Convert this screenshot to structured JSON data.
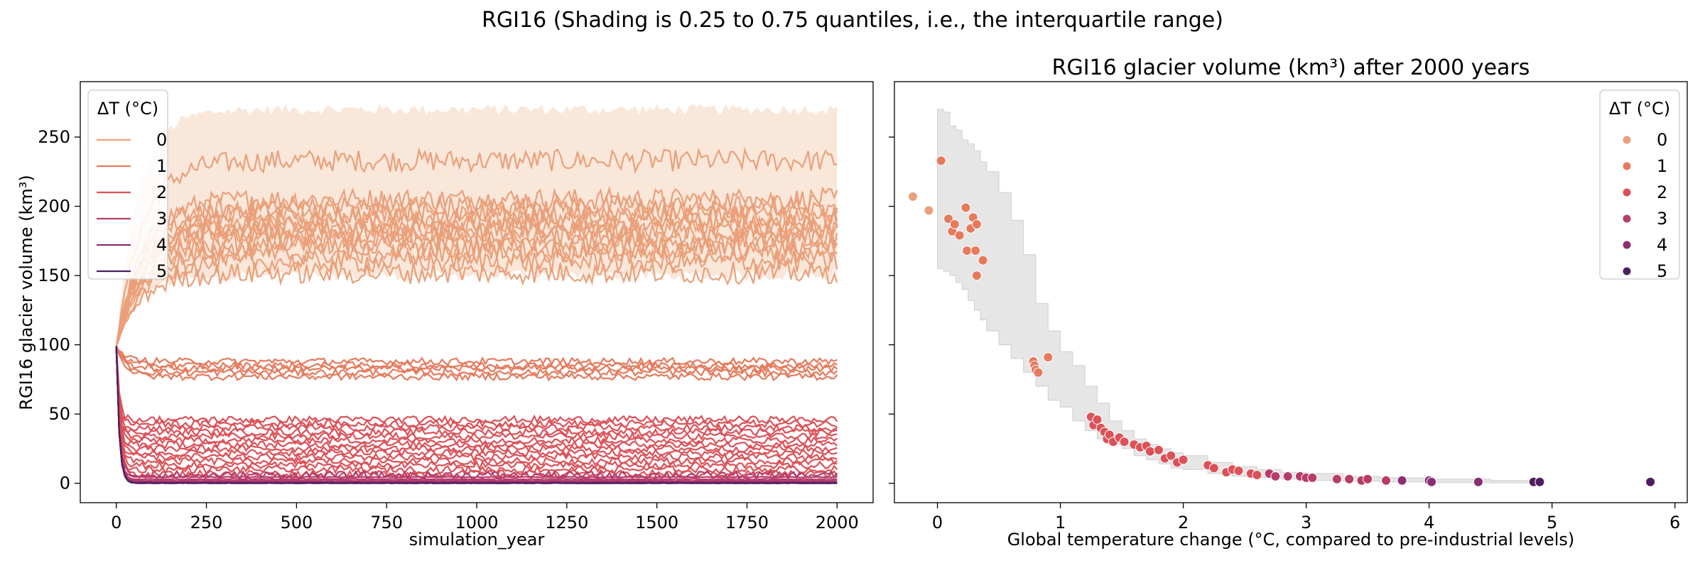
{
  "suptitle": "RGI16 (Shading is 0.25 to 0.75 quantiles, i.e., the interquartile range)",
  "legend_title": "ΔT (°C)",
  "legend_labels": [
    "0",
    "1",
    "2",
    "3",
    "4",
    "5"
  ],
  "palette": [
    "#eaa07a",
    "#e57a5c",
    "#dc5158",
    "#b63c6a",
    "#8a2e72",
    "#4e1f5f"
  ],
  "shade_color": "#f9e7da",
  "scatter_shade_color": "#e6e6e6",
  "chart_data": [
    {
      "type": "line",
      "title": "",
      "xlabel": "simulation_year",
      "ylabel": "RGI16 glacier volume (km³)",
      "xlim": [
        -100,
        2100
      ],
      "ylim": [
        -14,
        290
      ],
      "xticks": [
        0,
        250,
        500,
        750,
        1000,
        1250,
        1500,
        1750,
        2000
      ],
      "yticks": [
        0,
        50,
        100,
        150,
        200,
        250
      ],
      "legend_position": "upper-left",
      "interquartile_band": {
        "dT": 0,
        "lower": 150,
        "upper": 270
      },
      "line_groups": [
        {
          "dT": 0,
          "label": "0",
          "equilibria": [
            233,
            205,
            200,
            196,
            192,
            188,
            185,
            182,
            178,
            174,
            170,
            166,
            160,
            152
          ]
        },
        {
          "dT": 1,
          "label": "1",
          "equilibria": [
            88,
            85,
            83,
            80,
            77
          ]
        },
        {
          "dT": 2,
          "label": "2",
          "equilibria": [
            46,
            43,
            40,
            37,
            34,
            31,
            28,
            25,
            22,
            19,
            16,
            13,
            10,
            7
          ]
        },
        {
          "dT": 3,
          "label": "3",
          "equilibria": [
            6,
            4.5,
            3,
            2,
            1.2
          ]
        },
        {
          "dT": 4,
          "label": "4",
          "equilibria": [
            0.8,
            0.4,
            0.2
          ]
        },
        {
          "dT": 5,
          "label": "5",
          "equilibria": [
            0.1,
            0.05
          ]
        }
      ],
      "initial_volume": 99
    },
    {
      "type": "scatter",
      "title": "RGI16 glacier volume (km³) after 2000 years",
      "xlabel": "Global temperature change (°C, compared to pre-industrial levels)",
      "ylabel": "",
      "xlim": [
        -0.35,
        6.1
      ],
      "ylim": [
        -14,
        290
      ],
      "xticks": [
        0,
        1,
        2,
        3,
        4,
        5,
        6
      ],
      "legend_position": "upper-right",
      "points": [
        {
          "x": -0.2,
          "y": 207,
          "dT": 0
        },
        {
          "x": -0.07,
          "y": 197,
          "dT": 0
        },
        {
          "x": 0.03,
          "y": 233,
          "dT": 1
        },
        {
          "x": 0.09,
          "y": 191,
          "dT": 1
        },
        {
          "x": 0.12,
          "y": 182,
          "dT": 1
        },
        {
          "x": 0.14,
          "y": 187,
          "dT": 1
        },
        {
          "x": 0.18,
          "y": 179,
          "dT": 1
        },
        {
          "x": 0.23,
          "y": 199,
          "dT": 1
        },
        {
          "x": 0.24,
          "y": 168,
          "dT": 1
        },
        {
          "x": 0.27,
          "y": 184,
          "dT": 1
        },
        {
          "x": 0.29,
          "y": 192,
          "dT": 1
        },
        {
          "x": 0.31,
          "y": 168,
          "dT": 1
        },
        {
          "x": 0.32,
          "y": 187,
          "dT": 1
        },
        {
          "x": 0.32,
          "y": 150,
          "dT": 1
        },
        {
          "x": 0.37,
          "y": 161,
          "dT": 1
        },
        {
          "x": 0.78,
          "y": 88,
          "dT": 1
        },
        {
          "x": 0.79,
          "y": 85,
          "dT": 1
        },
        {
          "x": 0.8,
          "y": 82,
          "dT": 1
        },
        {
          "x": 0.82,
          "y": 80,
          "dT": 1
        },
        {
          "x": 0.9,
          "y": 91,
          "dT": 1
        },
        {
          "x": 1.25,
          "y": 48,
          "dT": 2
        },
        {
          "x": 1.27,
          "y": 42,
          "dT": 2
        },
        {
          "x": 1.3,
          "y": 46,
          "dT": 2
        },
        {
          "x": 1.33,
          "y": 40,
          "dT": 2
        },
        {
          "x": 1.36,
          "y": 37,
          "dT": 2
        },
        {
          "x": 1.38,
          "y": 32,
          "dT": 2
        },
        {
          "x": 1.4,
          "y": 35,
          "dT": 2
        },
        {
          "x": 1.43,
          "y": 30,
          "dT": 2
        },
        {
          "x": 1.48,
          "y": 33,
          "dT": 2
        },
        {
          "x": 1.52,
          "y": 30,
          "dT": 2
        },
        {
          "x": 1.6,
          "y": 28,
          "dT": 2
        },
        {
          "x": 1.65,
          "y": 26,
          "dT": 2
        },
        {
          "x": 1.7,
          "y": 27,
          "dT": 2
        },
        {
          "x": 1.73,
          "y": 23,
          "dT": 2
        },
        {
          "x": 1.8,
          "y": 24,
          "dT": 2
        },
        {
          "x": 1.85,
          "y": 18,
          "dT": 2
        },
        {
          "x": 1.9,
          "y": 20,
          "dT": 2
        },
        {
          "x": 1.95,
          "y": 15,
          "dT": 2
        },
        {
          "x": 2.0,
          "y": 17,
          "dT": 2
        },
        {
          "x": 2.2,
          "y": 13,
          "dT": 2
        },
        {
          "x": 2.25,
          "y": 11,
          "dT": 2
        },
        {
          "x": 2.35,
          "y": 8,
          "dT": 2
        },
        {
          "x": 2.4,
          "y": 10,
          "dT": 2
        },
        {
          "x": 2.45,
          "y": 9,
          "dT": 2
        },
        {
          "x": 2.55,
          "y": 7,
          "dT": 2
        },
        {
          "x": 2.6,
          "y": 6,
          "dT": 2
        },
        {
          "x": 2.7,
          "y": 7,
          "dT": 3
        },
        {
          "x": 2.75,
          "y": 5,
          "dT": 3
        },
        {
          "x": 2.85,
          "y": 5,
          "dT": 3
        },
        {
          "x": 2.95,
          "y": 5,
          "dT": 3
        },
        {
          "x": 3.0,
          "y": 4,
          "dT": 3
        },
        {
          "x": 3.05,
          "y": 4,
          "dT": 3
        },
        {
          "x": 3.25,
          "y": 3,
          "dT": 3
        },
        {
          "x": 3.35,
          "y": 3,
          "dT": 3
        },
        {
          "x": 3.45,
          "y": 2,
          "dT": 3
        },
        {
          "x": 3.5,
          "y": 3,
          "dT": 3
        },
        {
          "x": 3.65,
          "y": 2,
          "dT": 3
        },
        {
          "x": 3.78,
          "y": 2,
          "dT": 4
        },
        {
          "x": 4.0,
          "y": 2,
          "dT": 4
        },
        {
          "x": 4.02,
          "y": 1,
          "dT": 4
        },
        {
          "x": 4.4,
          "y": 1,
          "dT": 4
        },
        {
          "x": 4.85,
          "y": 1,
          "dT": 5
        },
        {
          "x": 4.9,
          "y": 1,
          "dT": 5
        },
        {
          "x": 5.8,
          "y": 1,
          "dT": 5
        }
      ],
      "band": [
        {
          "x": 0.0,
          "lo": 155,
          "hi": 270
        },
        {
          "x": 0.05,
          "lo": 153,
          "hi": 268
        },
        {
          "x": 0.1,
          "lo": 150,
          "hi": 258
        },
        {
          "x": 0.15,
          "lo": 145,
          "hi": 255
        },
        {
          "x": 0.2,
          "lo": 140,
          "hi": 248
        },
        {
          "x": 0.25,
          "lo": 132,
          "hi": 245
        },
        {
          "x": 0.3,
          "lo": 125,
          "hi": 240
        },
        {
          "x": 0.35,
          "lo": 118,
          "hi": 232
        },
        {
          "x": 0.4,
          "lo": 110,
          "hi": 225
        },
        {
          "x": 0.5,
          "lo": 100,
          "hi": 210
        },
        {
          "x": 0.6,
          "lo": 90,
          "hi": 190
        },
        {
          "x": 0.7,
          "lo": 80,
          "hi": 165
        },
        {
          "x": 0.8,
          "lo": 70,
          "hi": 130
        },
        {
          "x": 0.9,
          "lo": 60,
          "hi": 110
        },
        {
          "x": 1.0,
          "lo": 55,
          "hi": 95
        },
        {
          "x": 1.1,
          "lo": 45,
          "hi": 85
        },
        {
          "x": 1.2,
          "lo": 38,
          "hi": 70
        },
        {
          "x": 1.3,
          "lo": 32,
          "hi": 58
        },
        {
          "x": 1.4,
          "lo": 28,
          "hi": 45
        },
        {
          "x": 1.5,
          "lo": 25,
          "hi": 38
        },
        {
          "x": 1.6,
          "lo": 20,
          "hi": 32
        },
        {
          "x": 1.7,
          "lo": 17,
          "hi": 28
        },
        {
          "x": 1.8,
          "lo": 14,
          "hi": 25
        },
        {
          "x": 1.9,
          "lo": 11,
          "hi": 22
        },
        {
          "x": 2.0,
          "lo": 10,
          "hi": 20
        },
        {
          "x": 2.2,
          "lo": 7,
          "hi": 15
        },
        {
          "x": 2.4,
          "lo": 5,
          "hi": 12
        },
        {
          "x": 2.6,
          "lo": 4,
          "hi": 10
        },
        {
          "x": 2.8,
          "lo": 3,
          "hi": 8
        },
        {
          "x": 3.0,
          "lo": 2,
          "hi": 7
        },
        {
          "x": 3.3,
          "lo": 1.5,
          "hi": 5
        },
        {
          "x": 3.6,
          "lo": 1,
          "hi": 4
        },
        {
          "x": 4.0,
          "lo": 0.5,
          "hi": 3
        },
        {
          "x": 4.5,
          "lo": 0.3,
          "hi": 2
        },
        {
          "x": 4.9,
          "lo": 0.2,
          "hi": 1.5
        }
      ]
    }
  ]
}
